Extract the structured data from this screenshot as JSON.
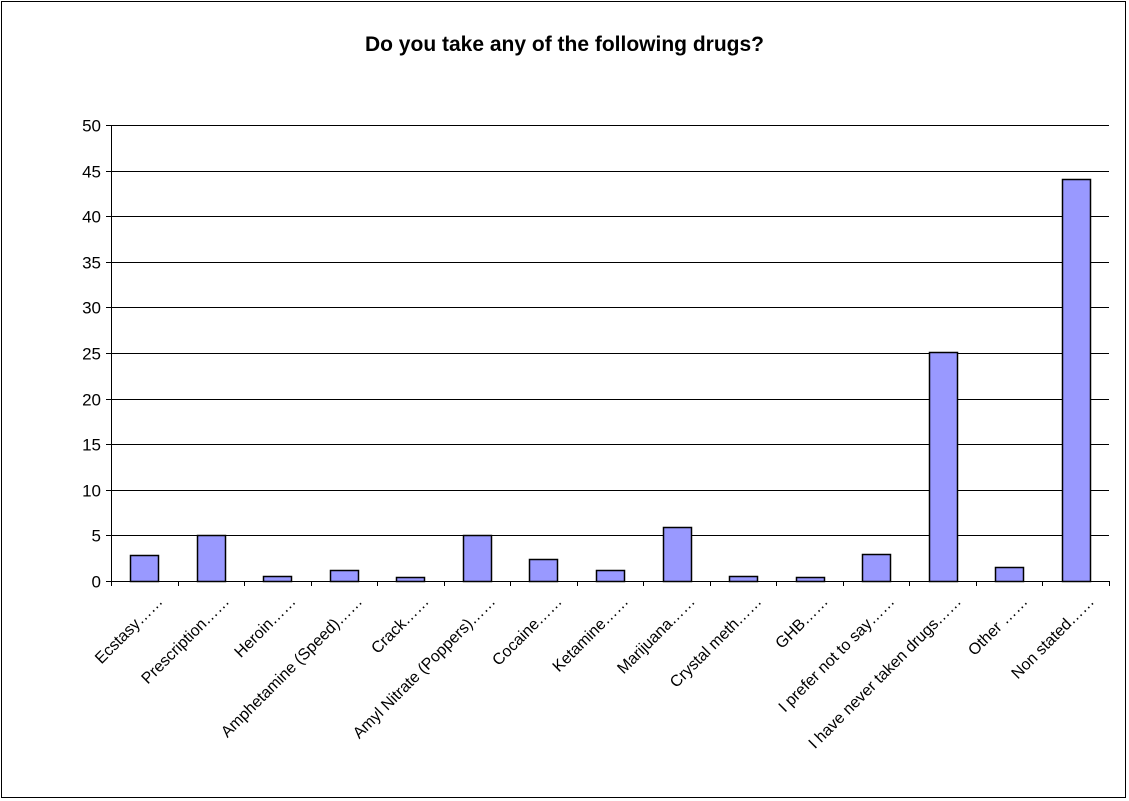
{
  "chart_data": {
    "type": "bar",
    "title": "Do you take any of the following drugs?",
    "xlabel": "",
    "ylabel": "",
    "ylim": [
      0,
      50
    ],
    "yticks": [
      0,
      5,
      10,
      15,
      20,
      25,
      30,
      35,
      40,
      45,
      50
    ],
    "grid": true,
    "legend": "none",
    "categories": [
      "Ecstasy……",
      "Prescription……",
      "Heroin……",
      "Amphetamine (Speed)……",
      "Crack……",
      "Amyl Nitrate (Poppers)……",
      "Cocaine……",
      "Ketamine……",
      "Marijuana……",
      "Crystal meth……",
      "GHB……",
      "I prefer not to say……",
      "I have never taken drugs……",
      "Other ……",
      "Non stated……"
    ],
    "values": [
      2.8,
      5,
      0.6,
      1.2,
      0.4,
      5,
      2.4,
      1.2,
      5.9,
      0.6,
      0.4,
      3,
      25.1,
      1.5,
      44.1
    ],
    "colors": {
      "bar_fill": "#9999ff",
      "bar_stroke": "#000000",
      "grid": "#000000",
      "axis": "#000000"
    }
  }
}
